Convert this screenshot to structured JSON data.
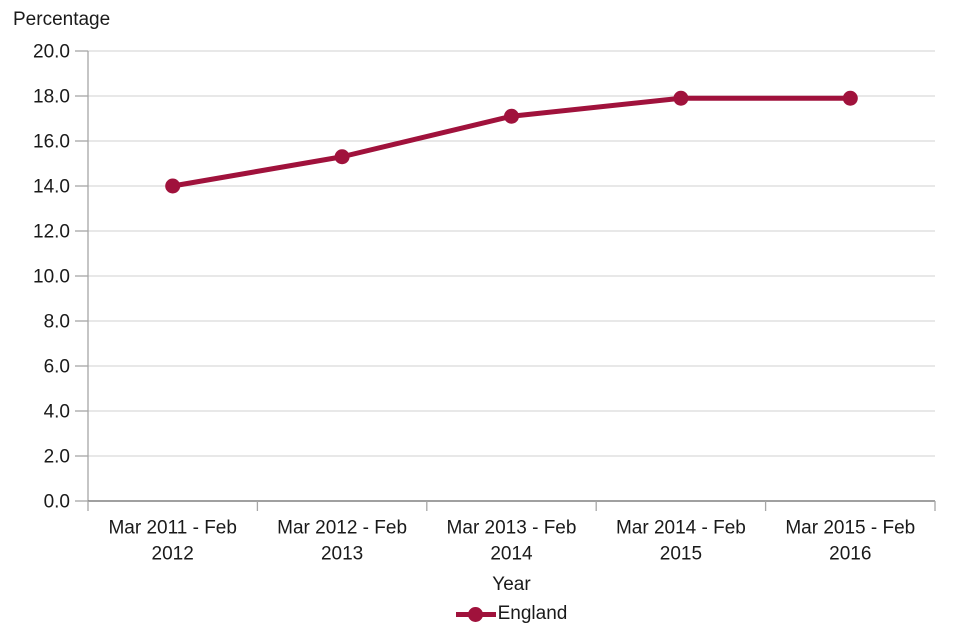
{
  "chart_data": {
    "type": "line",
    "title": "Percentage",
    "xlabel": "Year",
    "categories": [
      "Mar 2011 - Feb 2012",
      "Mar 2012 - Feb 2013",
      "Mar 2013 - Feb 2014",
      "Mar 2014 - Feb 2015",
      "Mar 2015 - Feb 2016"
    ],
    "series": [
      {
        "name": "England",
        "color": "#A0123C",
        "values": [
          14.0,
          15.3,
          17.1,
          17.9,
          17.9
        ]
      }
    ],
    "ylim": [
      0,
      20
    ],
    "ytick_step": 2,
    "ytick_decimals": 1,
    "grid": "horizontal",
    "legend_position": "bottom"
  },
  "colors": {
    "gridline": "#D9D9D9",
    "y_axis": "#A6A6A6",
    "tick": "#A6A6A6",
    "x_axis": "#808080",
    "text": "#1A1A1A"
  }
}
